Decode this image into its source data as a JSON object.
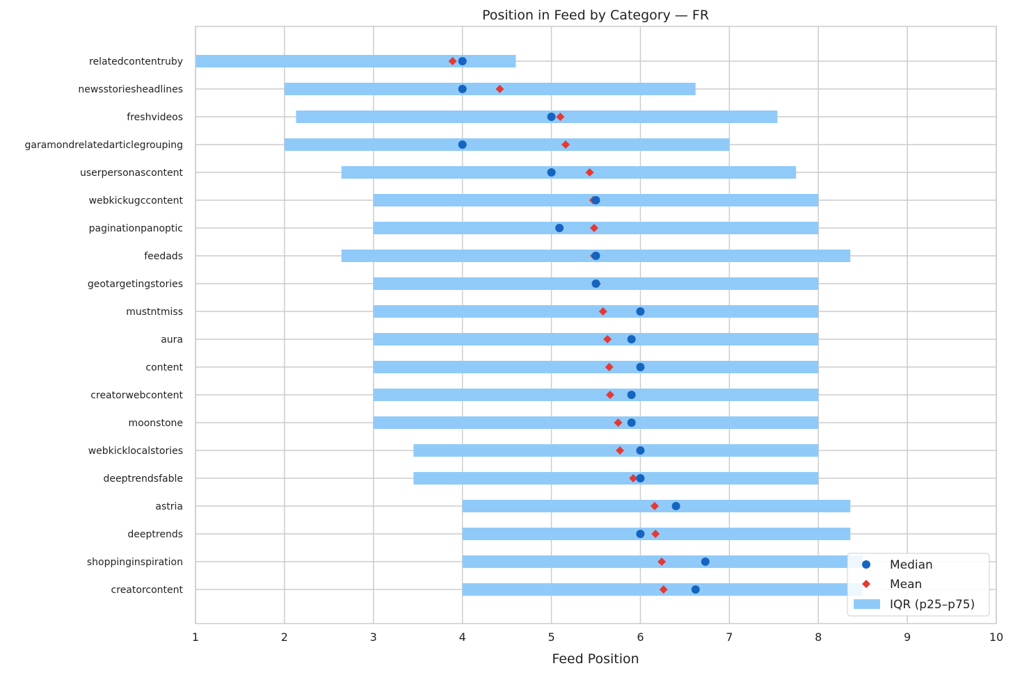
{
  "chart_data": {
    "type": "dot-range",
    "title": "Position in Feed by Category — FR",
    "xlabel": "Feed Position",
    "ylabel": "",
    "xlim": [
      1,
      10
    ],
    "xticks": [
      1,
      2,
      3,
      4,
      5,
      6,
      7,
      8,
      9,
      10
    ],
    "grid": true,
    "legend_position": "bottom-right",
    "colors": {
      "median": "#1565c0",
      "mean": "#e53935",
      "iqr": "#90caf9",
      "grid": "#cccccc"
    },
    "legend": {
      "median": "Median",
      "mean": "Mean",
      "iqr": "IQR (p25–p75)"
    },
    "categories": [
      "relatedcontentruby",
      "newsstoriesheadlines",
      "freshvideos",
      "garamondrelatedarticlegrouping",
      "userpersonascontent",
      "webkickugccontent",
      "paginationpanoptic",
      "feedads",
      "geotargetingstories",
      "mustntmiss",
      "aura",
      "content",
      "creatorwebcontent",
      "moonstone",
      "webkicklocalstories",
      "deeptrendsfable",
      "astria",
      "deeptrends",
      "shoppinginspiration",
      "creatorcontent"
    ],
    "series": [
      {
        "name": "IQR (p25–p75)",
        "p25": [
          1.0,
          2.0,
          2.13,
          2.0,
          2.64,
          3.0,
          3.0,
          2.64,
          3.0,
          3.0,
          3.0,
          3.0,
          3.0,
          3.0,
          3.45,
          3.45,
          4.0,
          4.0,
          4.0,
          4.0
        ],
        "p75": [
          4.6,
          6.62,
          7.54,
          7.0,
          7.75,
          8.0,
          8.0,
          8.36,
          8.0,
          8.0,
          8.0,
          8.0,
          8.0,
          8.0,
          8.0,
          8.0,
          8.36,
          8.36,
          8.5,
          8.5
        ]
      },
      {
        "name": "Median",
        "values": [
          4.0,
          4.0,
          5.0,
          4.0,
          5.0,
          5.5,
          5.09,
          5.5,
          5.5,
          6.0,
          5.9,
          6.0,
          5.9,
          5.9,
          6.0,
          6.0,
          6.4,
          6.0,
          6.73,
          6.62
        ]
      },
      {
        "name": "Mean",
        "values": [
          3.89,
          4.42,
          5.1,
          5.16,
          5.43,
          5.47,
          5.48,
          5.48,
          5.51,
          5.58,
          5.63,
          5.65,
          5.66,
          5.75,
          5.77,
          5.92,
          6.16,
          6.17,
          6.24,
          6.26
        ]
      }
    ]
  }
}
